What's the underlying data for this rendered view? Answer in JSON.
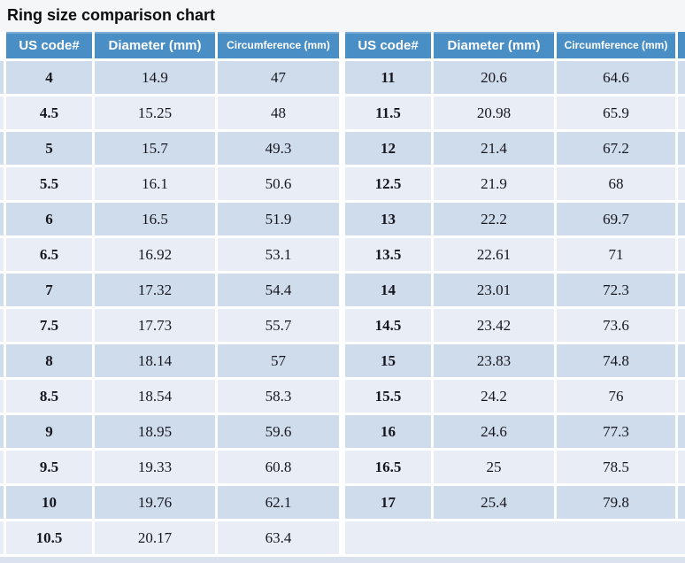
{
  "title": "Ring size comparison chart",
  "table": {
    "headers": [
      "US code#",
      "Diameter (mm)",
      "Circumference (mm)",
      "US code#",
      "Diameter (mm)",
      "Circumference (mm)"
    ],
    "rows": [
      [
        "4",
        "14.9",
        "47",
        "11",
        "20.6",
        "64.6"
      ],
      [
        "4.5",
        "15.25",
        "48",
        "11.5",
        "20.98",
        "65.9"
      ],
      [
        "5",
        "15.7",
        "49.3",
        "12",
        "21.4",
        "67.2"
      ],
      [
        "5.5",
        "16.1",
        "50.6",
        "12.5",
        "21.9",
        "68"
      ],
      [
        "6",
        "16.5",
        "51.9",
        "13",
        "22.2",
        "69.7"
      ],
      [
        "6.5",
        "16.92",
        "53.1",
        "13.5",
        "22.61",
        "71"
      ],
      [
        "7",
        "17.32",
        "54.4",
        "14",
        "23.01",
        "72.3"
      ],
      [
        "7.5",
        "17.73",
        "55.7",
        "14.5",
        "23.42",
        "73.6"
      ],
      [
        "8",
        "18.14",
        "57",
        "15",
        "23.83",
        "74.8"
      ],
      [
        "8.5",
        "18.54",
        "58.3",
        "15.5",
        "24.2",
        "76"
      ],
      [
        "9",
        "18.95",
        "59.6",
        "16",
        "24.6",
        "77.3"
      ],
      [
        "9.5",
        "19.33",
        "60.8",
        "16.5",
        "25",
        "78.5"
      ],
      [
        "10",
        "19.76",
        "62.1",
        "17",
        "25.4",
        "79.8"
      ],
      [
        "10.5",
        "20.17",
        "63.4",
        "",
        "",
        ""
      ]
    ]
  },
  "colors": {
    "header_bg": "#4a8ec6",
    "header_text": "#ffffff",
    "row_dark": "#cfdcec",
    "row_light": "#e9eef6",
    "divider": "#ffffff",
    "page_bg": "#f4f6f8",
    "text": "#17171f",
    "bottom_strip": "#d9e2ee"
  },
  "chart_data": {
    "type": "table",
    "title": "Ring size comparison chart",
    "columns": [
      "US code#",
      "Diameter (mm)",
      "Circumference (mm)"
    ],
    "entries": [
      {
        "us_code": "4",
        "diameter_mm": 14.9,
        "circumference_mm": 47
      },
      {
        "us_code": "4.5",
        "diameter_mm": 15.25,
        "circumference_mm": 48
      },
      {
        "us_code": "5",
        "diameter_mm": 15.7,
        "circumference_mm": 49.3
      },
      {
        "us_code": "5.5",
        "diameter_mm": 16.1,
        "circumference_mm": 50.6
      },
      {
        "us_code": "6",
        "diameter_mm": 16.5,
        "circumference_mm": 51.9
      },
      {
        "us_code": "6.5",
        "diameter_mm": 16.92,
        "circumference_mm": 53.1
      },
      {
        "us_code": "7",
        "diameter_mm": 17.32,
        "circumference_mm": 54.4
      },
      {
        "us_code": "7.5",
        "diameter_mm": 17.73,
        "circumference_mm": 55.7
      },
      {
        "us_code": "8",
        "diameter_mm": 18.14,
        "circumference_mm": 57
      },
      {
        "us_code": "8.5",
        "diameter_mm": 18.54,
        "circumference_mm": 58.3
      },
      {
        "us_code": "9",
        "diameter_mm": 18.95,
        "circumference_mm": 59.6
      },
      {
        "us_code": "9.5",
        "diameter_mm": 19.33,
        "circumference_mm": 60.8
      },
      {
        "us_code": "10",
        "diameter_mm": 19.76,
        "circumference_mm": 62.1
      },
      {
        "us_code": "10.5",
        "diameter_mm": 20.17,
        "circumference_mm": 63.4
      },
      {
        "us_code": "11",
        "diameter_mm": 20.6,
        "circumference_mm": 64.6
      },
      {
        "us_code": "11.5",
        "diameter_mm": 20.98,
        "circumference_mm": 65.9
      },
      {
        "us_code": "12",
        "diameter_mm": 21.4,
        "circumference_mm": 67.2
      },
      {
        "us_code": "12.5",
        "diameter_mm": 21.9,
        "circumference_mm": 68
      },
      {
        "us_code": "13",
        "diameter_mm": 22.2,
        "circumference_mm": 69.7
      },
      {
        "us_code": "13.5",
        "diameter_mm": 22.61,
        "circumference_mm": 71
      },
      {
        "us_code": "14",
        "diameter_mm": 23.01,
        "circumference_mm": 72.3
      },
      {
        "us_code": "14.5",
        "diameter_mm": 23.42,
        "circumference_mm": 73.6
      },
      {
        "us_code": "15",
        "diameter_mm": 23.83,
        "circumference_mm": 74.8
      },
      {
        "us_code": "15.5",
        "diameter_mm": 24.2,
        "circumference_mm": 76
      },
      {
        "us_code": "16",
        "diameter_mm": 24.6,
        "circumference_mm": 77.3
      },
      {
        "us_code": "16.5",
        "diameter_mm": 25,
        "circumference_mm": 78.5
      },
      {
        "us_code": "17",
        "diameter_mm": 25.4,
        "circumference_mm": 79.8
      }
    ]
  }
}
